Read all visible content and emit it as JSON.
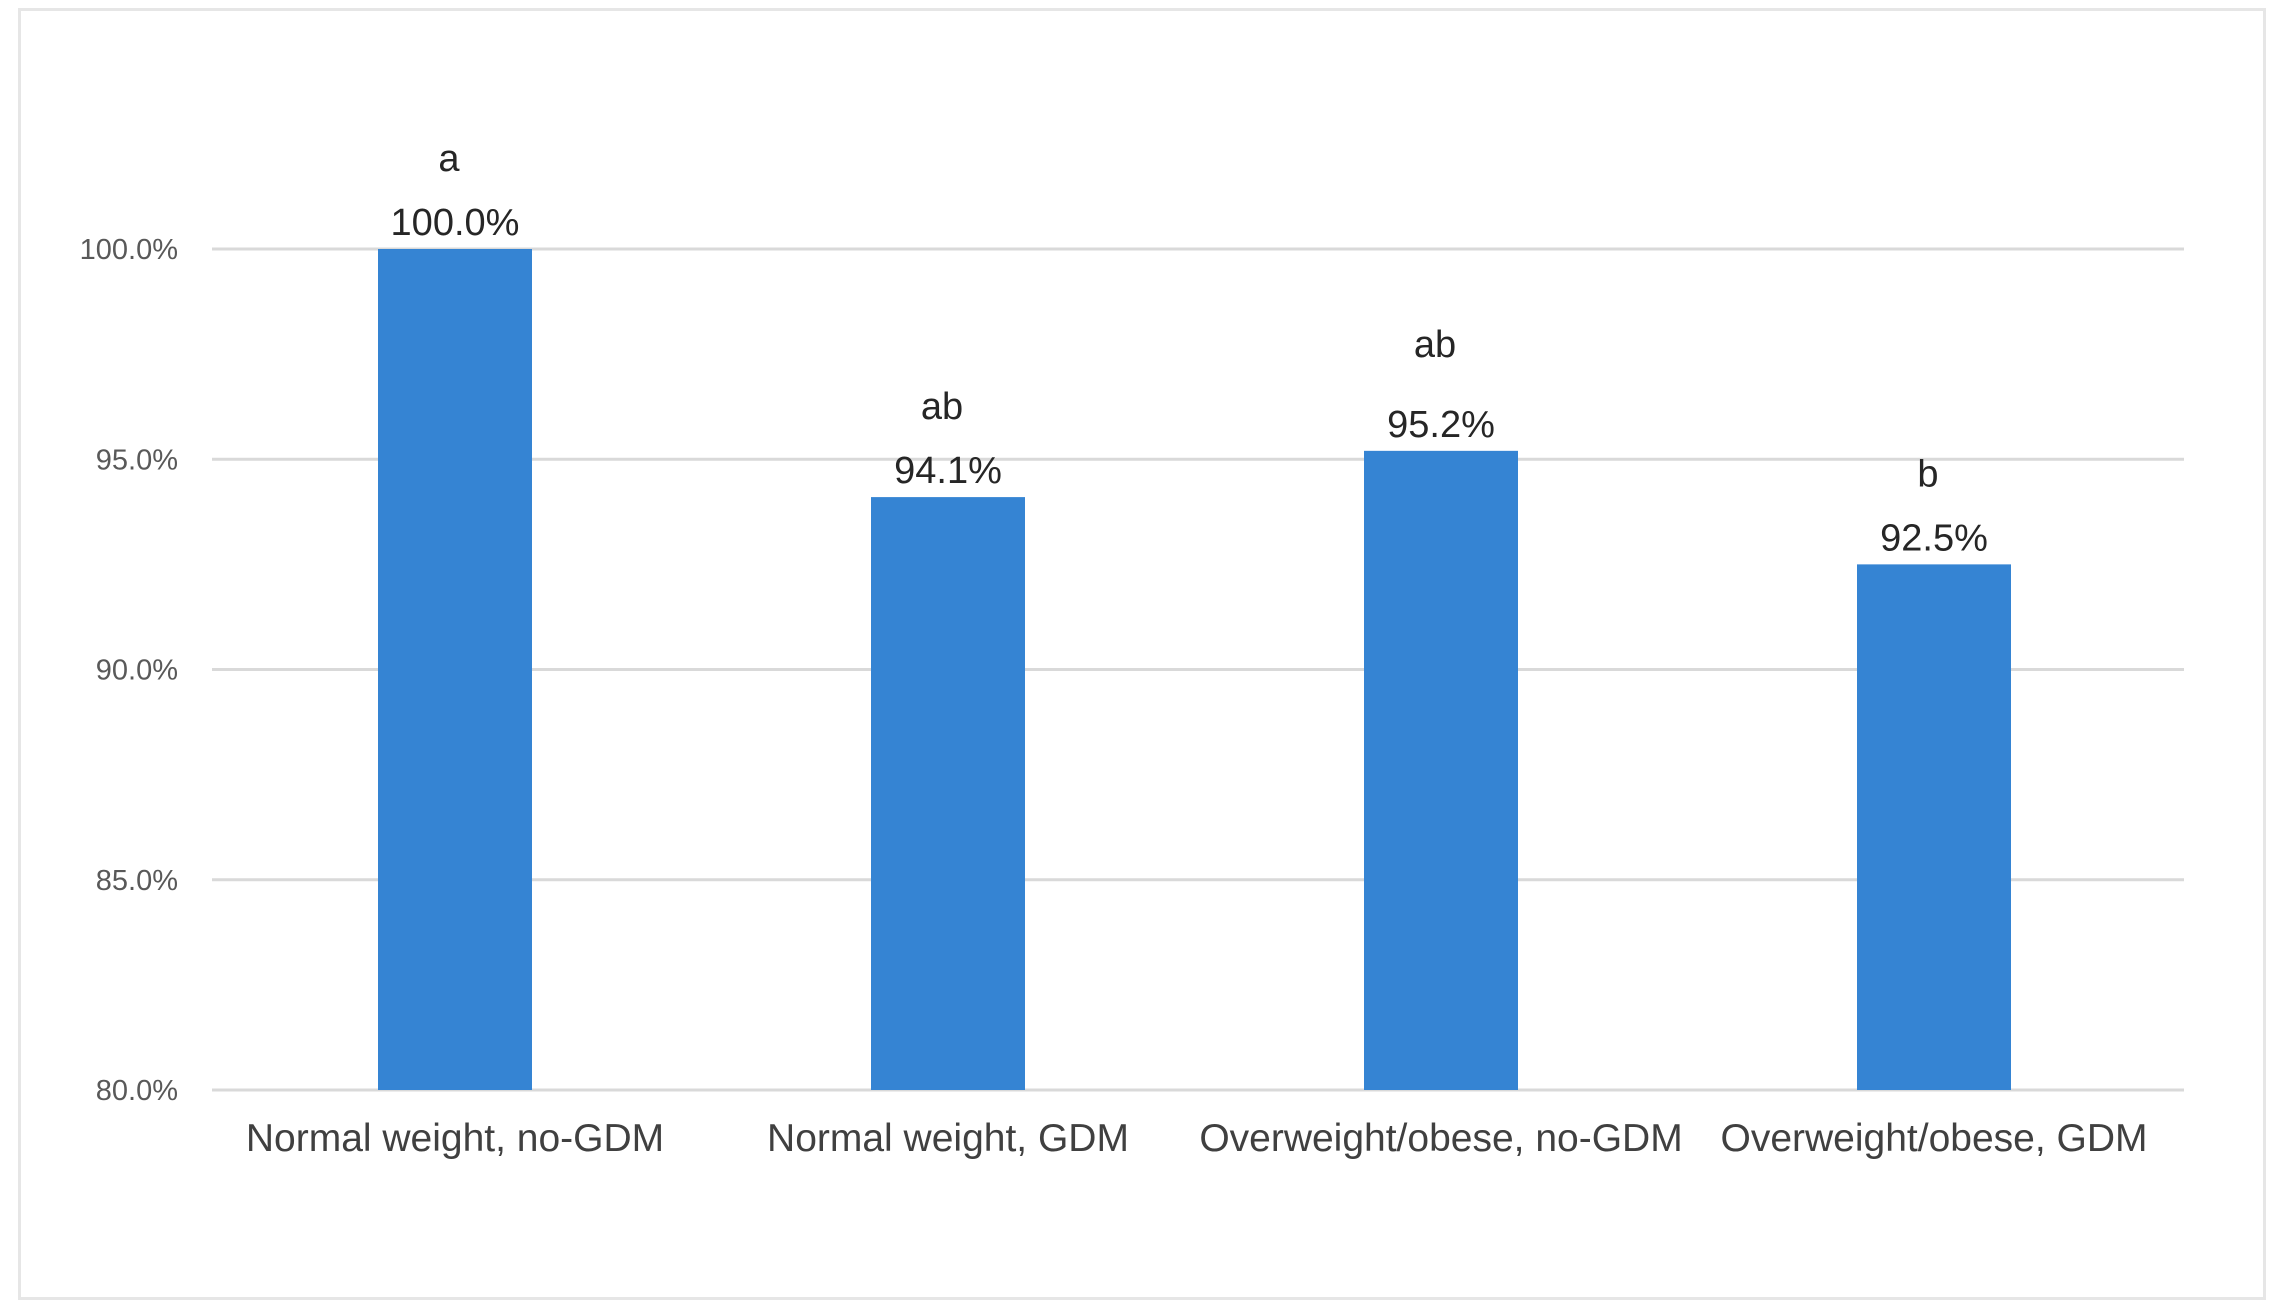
{
  "chart_data": {
    "type": "bar",
    "categories": [
      "Normal weight, no-GDM",
      "Normal weight, GDM",
      "Overweight/obese, no-GDM",
      "Overweight/obese, GDM"
    ],
    "values": [
      100.0,
      94.1,
      95.2,
      92.5
    ],
    "value_labels": [
      "100.0%",
      "94.1%",
      "95.2%",
      "92.5%"
    ],
    "significance_letters": [
      "a",
      "ab",
      "ab",
      "b"
    ],
    "ylim": [
      80,
      100
    ],
    "y_ticks": [
      80,
      85,
      90,
      95,
      100
    ],
    "y_tick_labels": [
      "80.0%",
      "85.0%",
      "90.0%",
      "95.0%",
      "100.0%"
    ],
    "grid": true,
    "title": "",
    "xlabel": "",
    "ylabel": "",
    "colors": {
      "bar": "#3584d3",
      "grid": "#d9d9d9"
    }
  }
}
